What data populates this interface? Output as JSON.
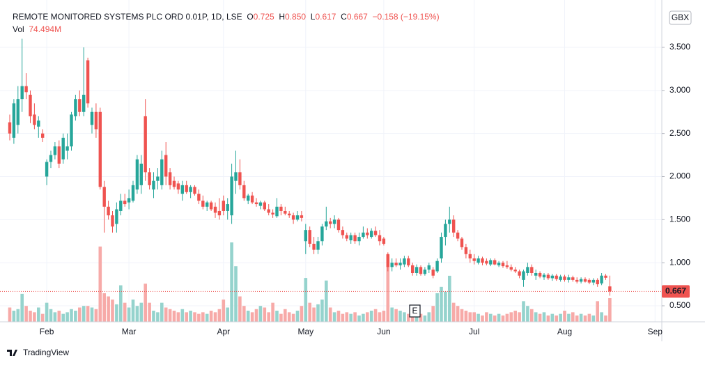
{
  "chart_data": {
    "type": "candlestick",
    "legend": {
      "symbol": "REMOTE MONITORED SYSTEMS PLC ORD 0.01P, 1D, LSE",
      "open_label": "O",
      "open": "0.725",
      "high_label": "H",
      "high": "0.850",
      "low_label": "L",
      "low": "0.617",
      "close_label": "C",
      "close": "0.667",
      "change": "−0.158 (−19.15%)",
      "volume_label": "Vol",
      "volume": "74.494M"
    },
    "currency": "GBX",
    "earnings_marker": "E",
    "brand": "TradingView",
    "up_color": "#26a69a",
    "down_color": "#ef5350",
    "up_volume_color": "#95d3cd",
    "down_volume_color": "#f7aaa8",
    "grid": true,
    "ylim": [
      0.314,
      3.985
    ],
    "yticks": [
      {
        "value": 0.5,
        "label": "0.500"
      },
      {
        "value": 1,
        "label": "1.000"
      },
      {
        "value": 1.5,
        "label": "1.500"
      },
      {
        "value": 2,
        "label": "2.000"
      },
      {
        "value": 2.5,
        "label": "2.500"
      },
      {
        "value": 3,
        "label": "3.000"
      },
      {
        "value": 3.5,
        "label": "3.500"
      }
    ],
    "categories": [
      null,
      null,
      null,
      null,
      null,
      null,
      null,
      null,
      null,
      "Feb",
      null,
      null,
      null,
      null,
      null,
      null,
      null,
      null,
      null,
      null,
      null,
      null,
      null,
      null,
      null,
      null,
      null,
      null,
      null,
      "Mar",
      null,
      null,
      null,
      null,
      null,
      null,
      null,
      null,
      null,
      null,
      null,
      null,
      null,
      null,
      null,
      null,
      null,
      null,
      null,
      null,
      null,
      null,
      "Apr",
      null,
      null,
      null,
      null,
      null,
      null,
      null,
      null,
      null,
      null,
      null,
      null,
      null,
      null,
      null,
      null,
      null,
      null,
      null,
      "May",
      null,
      null,
      null,
      null,
      null,
      null,
      null,
      null,
      null,
      null,
      null,
      null,
      null,
      null,
      null,
      null,
      null,
      null,
      "Jun",
      null,
      null,
      null,
      null,
      null,
      null,
      null,
      null,
      null,
      null,
      null,
      null,
      null,
      null,
      null,
      null,
      null,
      null,
      null,
      null,
      null,
      "Jul",
      null,
      null,
      null,
      null,
      null,
      null,
      null,
      null,
      null,
      null,
      null,
      null,
      null,
      null,
      null,
      null,
      null,
      null,
      null,
      null,
      null,
      "Aug",
      null,
      null,
      null,
      null,
      null,
      null,
      null,
      null,
      null,
      null,
      null,
      null,
      null,
      null,
      null,
      null,
      null,
      null,
      null,
      null,
      null,
      "Sep",
      null
    ],
    "open": [
      2.63,
      2.45,
      2.6,
      2.9,
      3.05,
      2.95,
      2.72,
      2.58,
      2.5,
      2.0,
      2.17,
      2.25,
      2.35,
      2.2,
      2.3,
      2.35,
      2.7,
      2.9,
      2.75,
      3.35,
      2.6,
      2.75,
      2.75,
      1.88,
      1.65,
      1.55,
      1.45,
      1.6,
      1.72,
      1.7,
      1.72,
      1.85,
      1.9,
      2.7,
      2.05,
      1.85,
      1.95,
      1.9,
      2.25,
      2.05,
      1.95,
      1.92,
      1.8,
      1.9,
      1.82,
      1.88,
      1.8,
      1.72,
      1.65,
      1.7,
      1.65,
      1.6,
      1.72,
      1.6,
      1.55,
      1.95,
      2.05,
      1.9,
      1.72,
      1.78,
      1.7,
      1.66,
      1.7,
      1.62,
      1.58,
      1.54,
      1.65,
      1.6,
      1.57,
      1.55,
      1.5,
      1.55,
      1.25,
      1.38,
      1.22,
      1.15,
      1.25,
      1.42,
      1.48,
      1.45,
      1.5,
      1.38,
      1.32,
      1.26,
      1.32,
      1.25,
      1.3,
      1.35,
      1.3,
      1.37,
      1.32,
      1.28,
      1.1,
      0.95,
      1.0,
      0.97,
      0.98,
      1.05,
      0.97,
      0.88,
      0.95,
      0.87,
      0.92,
      0.92,
      0.9,
      1.05,
      1.3,
      1.45,
      1.5,
      1.35,
      1.28,
      1.18,
      1.1,
      1.05,
      1.0,
      1.05,
      1.02,
      0.98,
      1.03,
      0.97,
      1.0,
      0.97,
      0.95,
      0.92,
      0.9,
      0.8,
      0.88,
      0.95,
      0.85,
      0.88,
      0.83,
      0.86,
      0.82,
      0.85,
      0.8,
      0.84,
      0.8,
      0.83,
      0.8,
      0.78,
      0.81,
      0.8,
      0.77,
      0.8,
      0.76,
      0.85,
      0.725,
      null,
      null,
      null,
      null,
      null,
      null,
      null,
      null,
      null,
      null,
      null,
      null
    ],
    "high": [
      2.72,
      2.9,
      3.05,
      3.6,
      3.2,
      3.0,
      2.85,
      2.7,
      2.55,
      2.2,
      2.3,
      2.4,
      2.42,
      2.5,
      2.5,
      2.75,
      2.95,
      3.0,
      3.5,
      3.38,
      2.8,
      2.85,
      2.8,
      1.95,
      1.72,
      1.6,
      1.7,
      1.8,
      1.8,
      1.85,
      1.95,
      2.25,
      2.25,
      2.9,
      2.1,
      2.05,
      2.1,
      2.3,
      2.4,
      2.1,
      2.0,
      1.95,
      1.95,
      1.95,
      1.9,
      1.9,
      1.85,
      1.78,
      1.72,
      1.72,
      1.7,
      1.75,
      1.78,
      1.75,
      2.15,
      2.3,
      2.2,
      1.95,
      1.8,
      1.82,
      1.75,
      1.72,
      1.72,
      1.68,
      1.62,
      1.75,
      1.68,
      1.65,
      1.6,
      1.58,
      1.6,
      1.6,
      1.45,
      1.42,
      1.3,
      1.3,
      1.45,
      1.65,
      1.52,
      1.55,
      1.52,
      1.42,
      1.35,
      1.35,
      1.35,
      1.35,
      1.42,
      1.4,
      1.4,
      1.42,
      1.38,
      1.3,
      1.12,
      1.05,
      1.05,
      1.05,
      1.08,
      1.08,
      1.0,
      0.98,
      0.97,
      0.95,
      1.0,
      0.95,
      1.05,
      1.35,
      1.5,
      1.65,
      1.55,
      1.38,
      1.3,
      1.22,
      1.15,
      1.1,
      1.08,
      1.07,
      1.05,
      1.05,
      1.05,
      1.02,
      1.02,
      1.02,
      0.98,
      0.95,
      0.92,
      0.92,
      1.0,
      0.98,
      0.92,
      0.9,
      0.88,
      0.88,
      0.87,
      0.87,
      0.86,
      0.86,
      0.86,
      0.85,
      0.83,
      0.83,
      0.83,
      0.82,
      0.82,
      0.82,
      0.88,
      0.87,
      0.85,
      null,
      null,
      null,
      null,
      null,
      null,
      null,
      null,
      null,
      null,
      null,
      null
    ],
    "low": [
      2.42,
      2.38,
      2.5,
      2.75,
      2.9,
      2.62,
      2.55,
      2.45,
      2.4,
      1.9,
      2.1,
      2.2,
      2.1,
      2.15,
      2.2,
      2.3,
      2.65,
      2.7,
      2.7,
      2.8,
      2.5,
      2.45,
      1.85,
      1.35,
      1.5,
      1.35,
      1.35,
      1.55,
      1.65,
      1.62,
      1.7,
      1.8,
      1.8,
      1.95,
      1.85,
      1.75,
      1.85,
      1.85,
      1.9,
      1.85,
      1.85,
      1.8,
      1.72,
      1.8,
      1.75,
      1.78,
      1.68,
      1.62,
      1.6,
      1.6,
      1.52,
      1.5,
      1.55,
      1.5,
      1.45,
      1.8,
      1.85,
      1.72,
      1.68,
      1.68,
      1.65,
      1.62,
      1.6,
      1.55,
      1.52,
      1.52,
      1.55,
      1.55,
      1.52,
      1.45,
      1.48,
      1.48,
      1.1,
      1.18,
      1.1,
      1.1,
      1.2,
      1.38,
      1.4,
      1.4,
      1.35,
      1.28,
      1.25,
      1.22,
      1.22,
      1.2,
      1.28,
      1.28,
      1.28,
      1.3,
      1.2,
      1.2,
      0.9,
      0.9,
      0.95,
      0.92,
      0.95,
      0.95,
      0.85,
      0.85,
      0.85,
      0.85,
      0.88,
      0.82,
      0.88,
      1.0,
      1.2,
      1.35,
      1.3,
      1.25,
      1.15,
      1.05,
      1.0,
      0.98,
      0.98,
      0.97,
      0.97,
      0.96,
      0.97,
      0.95,
      0.94,
      0.93,
      0.9,
      0.88,
      0.82,
      0.72,
      0.85,
      0.85,
      0.8,
      0.82,
      0.8,
      0.8,
      0.79,
      0.79,
      0.78,
      0.78,
      0.77,
      0.78,
      0.76,
      0.76,
      0.77,
      0.75,
      0.74,
      0.72,
      0.74,
      0.8,
      0.617,
      null,
      null,
      null,
      null,
      null,
      null,
      null,
      null,
      null,
      null,
      null,
      null
    ],
    "close": [
      2.5,
      2.85,
      2.9,
      3.05,
      2.98,
      2.7,
      2.6,
      2.65,
      2.45,
      2.17,
      2.25,
      2.35,
      2.15,
      2.45,
      2.35,
      2.72,
      2.9,
      2.75,
      2.95,
      2.85,
      2.75,
      2.55,
      1.88,
      1.65,
      1.55,
      1.42,
      1.62,
      1.72,
      1.68,
      1.75,
      1.9,
      2.2,
      2.15,
      2.05,
      1.9,
      1.95,
      2.0,
      2.2,
      2.0,
      1.9,
      1.88,
      1.85,
      1.9,
      1.82,
      1.88,
      1.8,
      1.72,
      1.65,
      1.7,
      1.62,
      1.58,
      1.55,
      1.6,
      1.68,
      2.0,
      2.05,
      1.9,
      1.75,
      1.78,
      1.7,
      1.68,
      1.7,
      1.62,
      1.58,
      1.56,
      1.65,
      1.6,
      1.57,
      1.55,
      1.5,
      1.55,
      1.52,
      1.38,
      1.22,
      1.15,
      1.25,
      1.42,
      1.48,
      1.45,
      1.5,
      1.38,
      1.32,
      1.28,
      1.32,
      1.25,
      1.3,
      1.35,
      1.32,
      1.37,
      1.32,
      1.25,
      1.22,
      0.95,
      1.0,
      0.97,
      1.0,
      1.05,
      0.97,
      0.88,
      0.95,
      0.87,
      0.92,
      0.97,
      0.85,
      1.02,
      1.3,
      1.45,
      1.5,
      1.35,
      1.28,
      1.18,
      1.1,
      1.05,
      1.02,
      1.05,
      1.0,
      0.99,
      1.03,
      0.98,
      1.0,
      0.96,
      0.95,
      0.92,
      0.9,
      0.85,
      0.9,
      0.95,
      0.88,
      0.88,
      0.84,
      0.86,
      0.82,
      0.85,
      0.81,
      0.84,
      0.8,
      0.83,
      0.8,
      0.78,
      0.81,
      0.78,
      0.77,
      0.8,
      0.75,
      0.85,
      0.825,
      0.667,
      null,
      null,
      null,
      null,
      null,
      null,
      null,
      null,
      null,
      null,
      null,
      null
    ],
    "volume": [
      45,
      35,
      40,
      88,
      50,
      35,
      30,
      45,
      25,
      60,
      40,
      30,
      35,
      25,
      30,
      40,
      35,
      45,
      50,
      50,
      45,
      40,
      237,
      90,
      80,
      70,
      55,
      115,
      60,
      45,
      70,
      50,
      60,
      120,
      60,
      35,
      30,
      60,
      45,
      40,
      35,
      30,
      40,
      30,
      35,
      30,
      25,
      30,
      25,
      35,
      30,
      40,
      70,
      45,
      250,
      175,
      80,
      50,
      35,
      30,
      40,
      50,
      45,
      30,
      60,
      35,
      25,
      40,
      30,
      25,
      35,
      50,
      138,
      60,
      45,
      55,
      70,
      130,
      45,
      30,
      35,
      25,
      30,
      25,
      30,
      20,
      25,
      30,
      35,
      40,
      30,
      35,
      210,
      45,
      40,
      35,
      30,
      25,
      35,
      30,
      25,
      20,
      30,
      50,
      90,
      110,
      95,
      145,
      60,
      50,
      40,
      35,
      30,
      30,
      25,
      20,
      30,
      25,
      20,
      25,
      20,
      25,
      30,
      35,
      30,
      65,
      50,
      40,
      30,
      25,
      30,
      20,
      25,
      20,
      25,
      35,
      25,
      30,
      20,
      25,
      20,
      25,
      20,
      65,
      30,
      20,
      74.494,
      null,
      null,
      null,
      null,
      null,
      null,
      null,
      null,
      null,
      null,
      null,
      null
    ]
  }
}
